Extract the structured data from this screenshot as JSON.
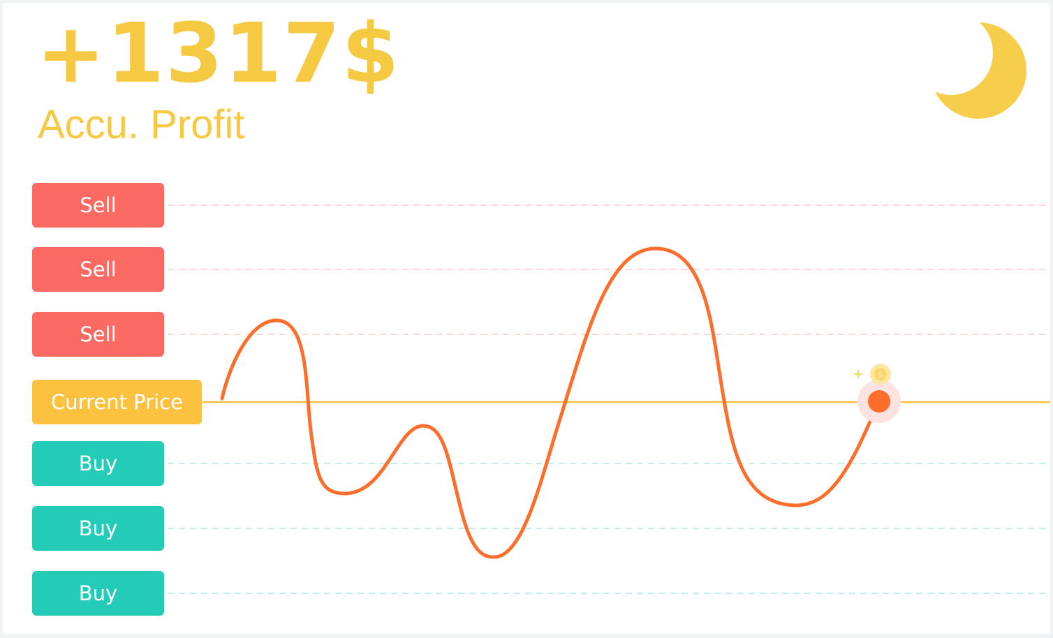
{
  "header": {
    "profit_value": "+1317$",
    "profit_label": "Accu. Profit"
  },
  "icons": {
    "theme_toggle": "moon-icon",
    "coin": "dollar-coin-icon"
  },
  "colors": {
    "accent": "#f5c942",
    "sell": "#fb6b63",
    "buy": "#24ccb8",
    "current_price": "#fcc13e",
    "price_line": "#fd6e2c",
    "sell_grid": "#fdd5d3",
    "buy_grid": "#bfeee8"
  },
  "grid": {
    "sell_levels": [
      {
        "label": "Sell"
      },
      {
        "label": "Sell"
      },
      {
        "label": "Sell"
      }
    ],
    "current": {
      "label": "Current Price"
    },
    "buy_levels": [
      {
        "label": "Buy"
      },
      {
        "label": "Buy"
      },
      {
        "label": "Buy"
      }
    ]
  }
}
